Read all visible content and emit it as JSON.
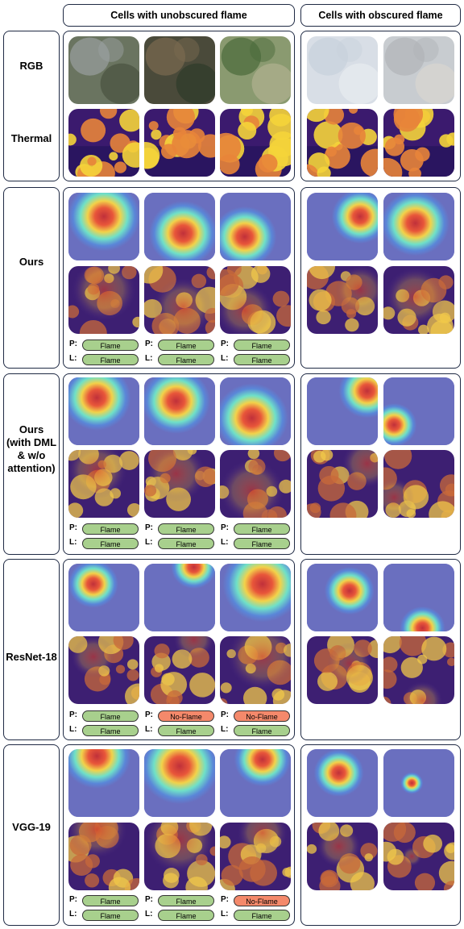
{
  "headers": {
    "unobscured": "Cells with unobscured flame",
    "obscured": "Cells with obscured flame"
  },
  "prefix": {
    "pred": "P:",
    "label": "L:"
  },
  "rows": [
    {
      "label_lines": [
        "RGB",
        "Thermal"
      ],
      "tiles_top": [
        "rgb-forest-smoke",
        "rgb-forest-dark",
        "rgb-forest-green",
        "rgb-smoke",
        "rgb-smoke-light"
      ],
      "tiles_bottom": [
        "thermal",
        "thermal",
        "thermal",
        "thermal",
        "thermal"
      ]
    },
    {
      "label_lines": [
        "Ours"
      ],
      "tiles_top": [
        "heatmap",
        "heatmap",
        "heatmap",
        "heatmap",
        "heatmap"
      ],
      "tiles_bottom": [
        "overlay",
        "overlay",
        "overlay",
        "overlay",
        "overlay"
      ],
      "predictions": [
        {
          "P": "Flame",
          "L": "Flame"
        },
        {
          "P": "Flame",
          "L": "Flame"
        },
        {
          "P": "Flame",
          "L": "Flame"
        }
      ]
    },
    {
      "label_lines": [
        "Ours",
        "(with DML",
        "& w/o",
        "attention)"
      ],
      "tiles_top": [
        "heatmap",
        "heatmap",
        "heatmap",
        "heatmap",
        "heatmap"
      ],
      "tiles_bottom": [
        "overlay",
        "overlay",
        "overlay",
        "overlay",
        "overlay"
      ],
      "predictions": [
        {
          "P": "Flame",
          "L": "Flame"
        },
        {
          "P": "Flame",
          "L": "Flame"
        },
        {
          "P": "Flame",
          "L": "Flame"
        }
      ]
    },
    {
      "label_lines": [
        "ResNet-18"
      ],
      "tiles_top": [
        "heatmap",
        "heatmap",
        "heatmap",
        "heatmap",
        "heatmap"
      ],
      "tiles_bottom": [
        "overlay",
        "overlay",
        "overlay",
        "overlay",
        "overlay"
      ],
      "predictions": [
        {
          "P": "Flame",
          "L": "Flame"
        },
        {
          "P": "No-Flame",
          "L": "Flame"
        },
        {
          "P": "No-Flame",
          "L": "Flame"
        }
      ]
    },
    {
      "label_lines": [
        "VGG-19"
      ],
      "tiles_top": [
        "heatmap",
        "heatmap",
        "heatmap",
        "heatmap",
        "heatmap"
      ],
      "tiles_bottom": [
        "overlay",
        "overlay",
        "overlay",
        "overlay",
        "overlay"
      ],
      "predictions": [
        {
          "P": "Flame",
          "L": "Flame"
        },
        {
          "P": "Flame",
          "L": "Flame"
        },
        {
          "P": "No-Flame",
          "L": "Flame"
        }
      ]
    }
  ],
  "colors": {
    "flame_pill": "#a8d08d",
    "noflame_pill": "#f4896b",
    "border": "#1f2a44"
  }
}
